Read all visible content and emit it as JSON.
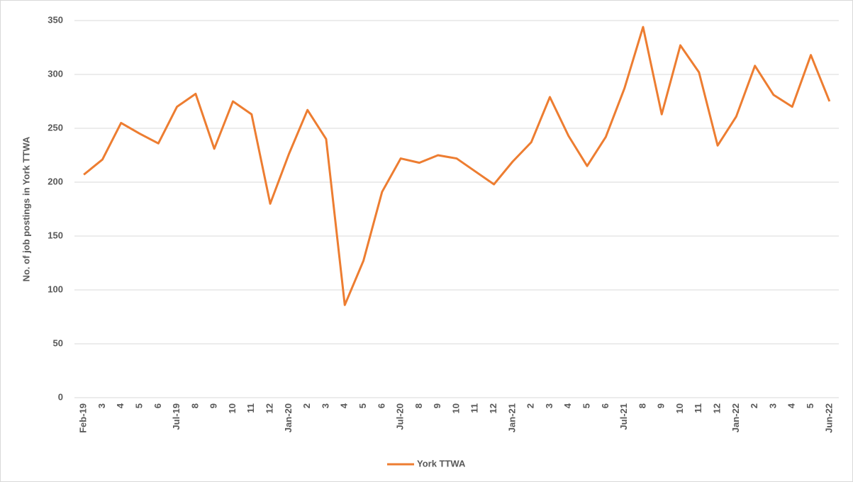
{
  "chart_data": {
    "type": "line",
    "y_label": "No. of job postings in York TTWA",
    "categories": [
      "Feb-19",
      "3",
      "4",
      "5",
      "6",
      "Jul-19",
      "8",
      "9",
      "10",
      "11",
      "12",
      "Jan-20",
      "2",
      "3",
      "4",
      "5",
      "6",
      "Jul-20",
      "8",
      "9",
      "10",
      "11",
      "12",
      "Jan-21",
      "2",
      "3",
      "4",
      "5",
      "6",
      "Jul-21",
      "8",
      "9",
      "10",
      "11",
      "12",
      "Jan-22",
      "2",
      "3",
      "4",
      "5",
      "Jun-22"
    ],
    "series": [
      {
        "name": "York TTWA",
        "color": "#ED7D31",
        "values": [
          207,
          221,
          255,
          245,
          236,
          270,
          282,
          231,
          275,
          263,
          180,
          226,
          267,
          240,
          86,
          127,
          191,
          222,
          218,
          225,
          222,
          210,
          198,
          219,
          237,
          279,
          243,
          215,
          242,
          287,
          344,
          263,
          327,
          302,
          234,
          261,
          308,
          281,
          270,
          318,
          275
        ]
      }
    ],
    "ylim": [
      0,
      350
    ],
    "yticks": [
      0,
      50,
      100,
      150,
      200,
      250,
      300,
      350
    ],
    "grid": true,
    "legend": "bottom"
  }
}
